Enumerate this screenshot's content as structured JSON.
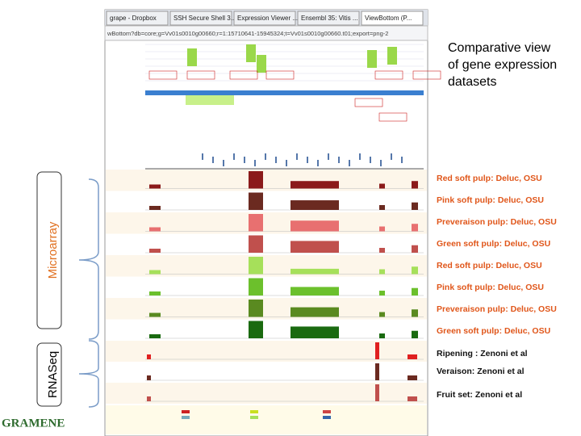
{
  "tabs": [
    "grape - Dropbox",
    "SSH Secure Shell 3...",
    "Expression Viewer ...",
    "Ensembl 35: Vitis ...",
    "ViewBottom (P..."
  ],
  "url": "wBottom?db=core;g=Vv01s0010g00660;r=1:15710641-15945324;t=Vv01s0010g00660.t01;export=png-2",
  "heading": [
    "Comparative view",
    "of gene expression",
    "datasets"
  ],
  "groups": [
    "Microarray",
    "RNASeq"
  ],
  "microarray_tracks": [
    "Red soft pulp: Deluc, OSU",
    "Pink soft pulp: Deluc, OSU",
    "Preveraison pulp: Deluc, OSU",
    "Green soft pulp: Deluc, OSU",
    "Red soft pulp: Deluc, OSU",
    "Pink soft pulp: Deluc, OSU",
    "Preveraison pulp: Deluc, OSU",
    "Green soft pulp: Deluc, OSU"
  ],
  "rnaseq_tracks": [
    "Ripening : Zenoni et al",
    "Veraison: Zenoni et al",
    "Fruit set: Zenoni et al"
  ],
  "logo": "GRAMENE"
}
